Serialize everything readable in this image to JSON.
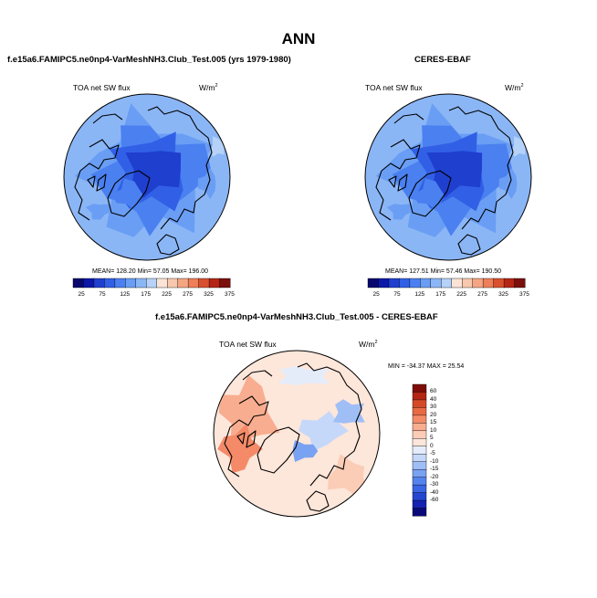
{
  "figure_title": "ANN",
  "colors": {
    "map_scale": [
      "#08086e",
      "#0b18a8",
      "#1f3fcf",
      "#3160e6",
      "#4a80f0",
      "#6a9ef4",
      "#8bb6f6",
      "#b6d2f8",
      "#fbe3d6",
      "#f7c8ae",
      "#f4a683",
      "#ee7f59",
      "#d9502f",
      "#b52515",
      "#7a0f0c"
    ],
    "diff_scale": [
      "#0a0a78",
      "#1623b0",
      "#2446d0",
      "#3a66e4",
      "#5583ee",
      "#7aa2f3",
      "#a0bef6",
      "#c6d8f9",
      "#e4ecfa",
      "#fde6da",
      "#fbccb6",
      "#f8ad90",
      "#f48a68",
      "#e86a45",
      "#d44a27",
      "#b32613",
      "#7e0d08"
    ]
  },
  "chart_data": [
    {
      "type": "heatmap",
      "projection": "polar-stereographic (north)",
      "title": "f.e15a6.FAMIPC5.ne0np4-VarMeshNH3.Club_Test.005 (yrs 1979-1980)",
      "left_label": "TOA net SW flux",
      "units_label": "W/m",
      "units_sup": "2",
      "stats": "MEAN= 128.20  Min=  57.05  Max= 196.00",
      "mean": 128.2,
      "min": 57.05,
      "max": 196.0,
      "colorbar_ticks": [
        "25",
        "75",
        "125",
        "175",
        "225",
        "275",
        "325",
        "375"
      ]
    },
    {
      "type": "heatmap",
      "projection": "polar-stereographic (north)",
      "title": "CERES-EBAF",
      "left_label": "TOA net SW flux",
      "units_label": "W/m",
      "units_sup": "2",
      "stats": "MEAN= 127.51  Min=  57.46  Max= 190.50",
      "mean": 127.51,
      "min": 57.46,
      "max": 190.5,
      "colorbar_ticks": [
        "25",
        "75",
        "125",
        "175",
        "225",
        "275",
        "325",
        "375"
      ]
    },
    {
      "type": "heatmap",
      "projection": "polar-stereographic (north)",
      "title": "f.e15a6.FAMIPC5.ne0np4-VarMeshNH3.Club_Test.005 - CERES-EBAF",
      "left_label": "TOA net SW flux",
      "units_label": "W/m",
      "units_sup": "2",
      "stats": "MIN = -34.37 MAX =  25.54",
      "min": -34.37,
      "max": 25.54,
      "colorbar_ticks": [
        "60",
        "40",
        "30",
        "20",
        "15",
        "10",
        "5",
        "0",
        "-5",
        "-10",
        "-15",
        "-20",
        "-30",
        "-40",
        "-60"
      ]
    }
  ]
}
